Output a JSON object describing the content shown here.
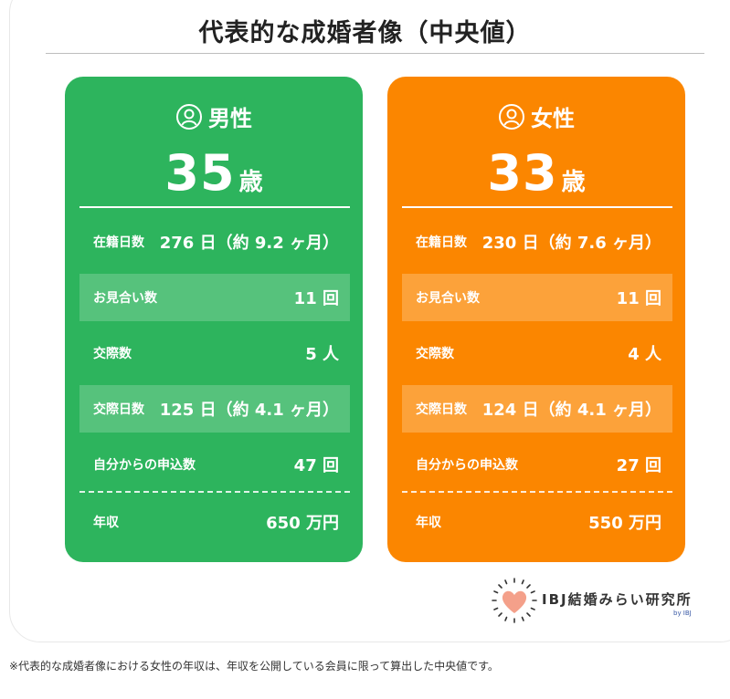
{
  "title": "代表的な成婚者像（中央値）",
  "cards": {
    "male": {
      "gender": "男性",
      "age": "35",
      "age_unit": "歳",
      "color": "#2db45d",
      "rows": [
        {
          "label": "在籍日数",
          "value": "276 日（約 9.2 ヶ月）"
        },
        {
          "label": "お見合い数",
          "value": "11 回"
        },
        {
          "label": "交際数",
          "value": "5 人"
        },
        {
          "label": "交際日数",
          "value": "125 日（約 4.1 ヶ月）"
        },
        {
          "label": "自分からの申込数",
          "value": "47 回"
        },
        {
          "label": "年収",
          "value": "650 万円"
        }
      ]
    },
    "female": {
      "gender": "女性",
      "age": "33",
      "age_unit": "歳",
      "color": "#fb8600",
      "rows": [
        {
          "label": "在籍日数",
          "value": "230 日（約 7.6 ヶ月）"
        },
        {
          "label": "お見合い数",
          "value": "11 回"
        },
        {
          "label": "交際数",
          "value": "4 人"
        },
        {
          "label": "交際日数",
          "value": "124 日（約 4.1 ヶ月）"
        },
        {
          "label": "自分からの申込数",
          "value": "27 回"
        },
        {
          "label": "年収",
          "value": "550 万円"
        }
      ]
    }
  },
  "logo": {
    "text": "IBJ結婚みらい研究所",
    "by": "by IBJ",
    "icon": "heart-sun-icon"
  },
  "footnote": "※代表的な成婚者像における女性の年収は、年収を公開している会員に限って算出した中央値です。"
}
